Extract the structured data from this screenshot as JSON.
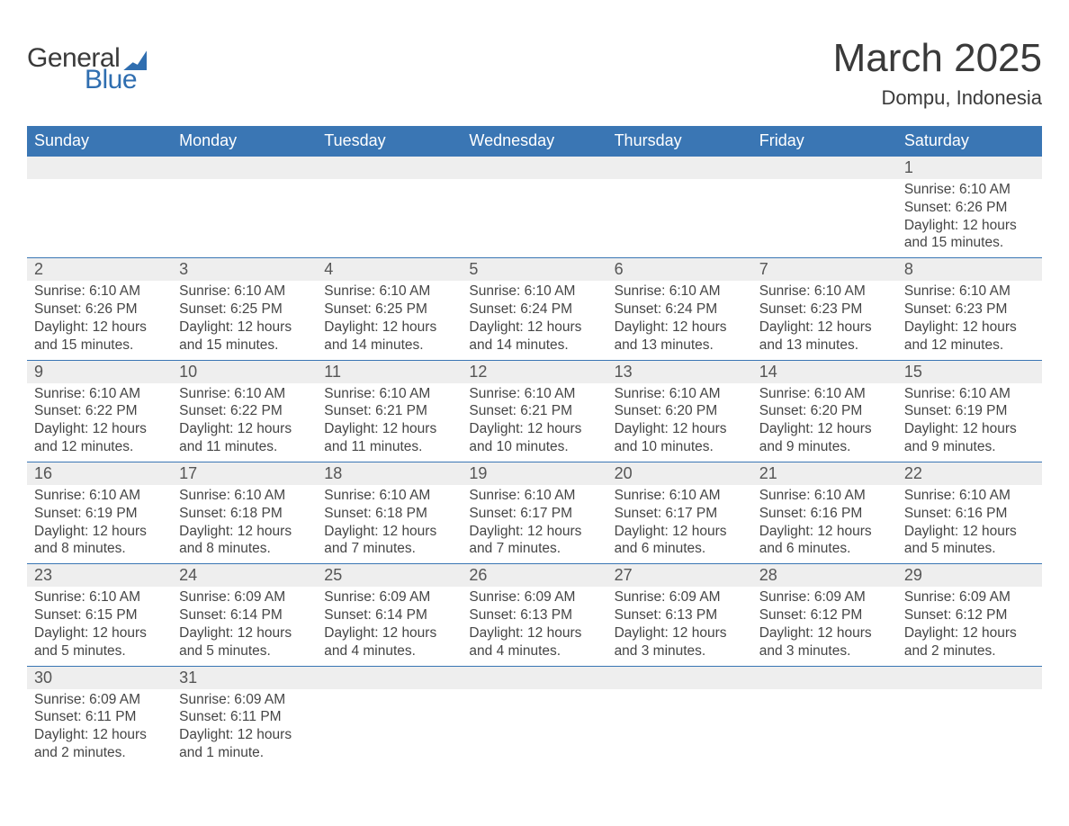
{
  "brand": {
    "word1": "General",
    "word2": "Blue"
  },
  "title": "March 2025",
  "location": "Dompu, Indonesia",
  "colors": {
    "header_bg": "#3a76b4",
    "header_text": "#ffffff",
    "daynum_bg": "#eeeeee",
    "border": "#3a76b4",
    "text": "#3a3a3a",
    "brand_blue": "#2f6eb0"
  },
  "days_of_week": [
    "Sunday",
    "Monday",
    "Tuesday",
    "Wednesday",
    "Thursday",
    "Friday",
    "Saturday"
  ],
  "weeks": [
    [
      {
        "n": "",
        "sunrise": "",
        "sunset": "",
        "daylight": ""
      },
      {
        "n": "",
        "sunrise": "",
        "sunset": "",
        "daylight": ""
      },
      {
        "n": "",
        "sunrise": "",
        "sunset": "",
        "daylight": ""
      },
      {
        "n": "",
        "sunrise": "",
        "sunset": "",
        "daylight": ""
      },
      {
        "n": "",
        "sunrise": "",
        "sunset": "",
        "daylight": ""
      },
      {
        "n": "",
        "sunrise": "",
        "sunset": "",
        "daylight": ""
      },
      {
        "n": "1",
        "sunrise": "Sunrise: 6:10 AM",
        "sunset": "Sunset: 6:26 PM",
        "daylight": "Daylight: 12 hours and 15 minutes."
      }
    ],
    [
      {
        "n": "2",
        "sunrise": "Sunrise: 6:10 AM",
        "sunset": "Sunset: 6:26 PM",
        "daylight": "Daylight: 12 hours and 15 minutes."
      },
      {
        "n": "3",
        "sunrise": "Sunrise: 6:10 AM",
        "sunset": "Sunset: 6:25 PM",
        "daylight": "Daylight: 12 hours and 15 minutes."
      },
      {
        "n": "4",
        "sunrise": "Sunrise: 6:10 AM",
        "sunset": "Sunset: 6:25 PM",
        "daylight": "Daylight: 12 hours and 14 minutes."
      },
      {
        "n": "5",
        "sunrise": "Sunrise: 6:10 AM",
        "sunset": "Sunset: 6:24 PM",
        "daylight": "Daylight: 12 hours and 14 minutes."
      },
      {
        "n": "6",
        "sunrise": "Sunrise: 6:10 AM",
        "sunset": "Sunset: 6:24 PM",
        "daylight": "Daylight: 12 hours and 13 minutes."
      },
      {
        "n": "7",
        "sunrise": "Sunrise: 6:10 AM",
        "sunset": "Sunset: 6:23 PM",
        "daylight": "Daylight: 12 hours and 13 minutes."
      },
      {
        "n": "8",
        "sunrise": "Sunrise: 6:10 AM",
        "sunset": "Sunset: 6:23 PM",
        "daylight": "Daylight: 12 hours and 12 minutes."
      }
    ],
    [
      {
        "n": "9",
        "sunrise": "Sunrise: 6:10 AM",
        "sunset": "Sunset: 6:22 PM",
        "daylight": "Daylight: 12 hours and 12 minutes."
      },
      {
        "n": "10",
        "sunrise": "Sunrise: 6:10 AM",
        "sunset": "Sunset: 6:22 PM",
        "daylight": "Daylight: 12 hours and 11 minutes."
      },
      {
        "n": "11",
        "sunrise": "Sunrise: 6:10 AM",
        "sunset": "Sunset: 6:21 PM",
        "daylight": "Daylight: 12 hours and 11 minutes."
      },
      {
        "n": "12",
        "sunrise": "Sunrise: 6:10 AM",
        "sunset": "Sunset: 6:21 PM",
        "daylight": "Daylight: 12 hours and 10 minutes."
      },
      {
        "n": "13",
        "sunrise": "Sunrise: 6:10 AM",
        "sunset": "Sunset: 6:20 PM",
        "daylight": "Daylight: 12 hours and 10 minutes."
      },
      {
        "n": "14",
        "sunrise": "Sunrise: 6:10 AM",
        "sunset": "Sunset: 6:20 PM",
        "daylight": "Daylight: 12 hours and 9 minutes."
      },
      {
        "n": "15",
        "sunrise": "Sunrise: 6:10 AM",
        "sunset": "Sunset: 6:19 PM",
        "daylight": "Daylight: 12 hours and 9 minutes."
      }
    ],
    [
      {
        "n": "16",
        "sunrise": "Sunrise: 6:10 AM",
        "sunset": "Sunset: 6:19 PM",
        "daylight": "Daylight: 12 hours and 8 minutes."
      },
      {
        "n": "17",
        "sunrise": "Sunrise: 6:10 AM",
        "sunset": "Sunset: 6:18 PM",
        "daylight": "Daylight: 12 hours and 8 minutes."
      },
      {
        "n": "18",
        "sunrise": "Sunrise: 6:10 AM",
        "sunset": "Sunset: 6:18 PM",
        "daylight": "Daylight: 12 hours and 7 minutes."
      },
      {
        "n": "19",
        "sunrise": "Sunrise: 6:10 AM",
        "sunset": "Sunset: 6:17 PM",
        "daylight": "Daylight: 12 hours and 7 minutes."
      },
      {
        "n": "20",
        "sunrise": "Sunrise: 6:10 AM",
        "sunset": "Sunset: 6:17 PM",
        "daylight": "Daylight: 12 hours and 6 minutes."
      },
      {
        "n": "21",
        "sunrise": "Sunrise: 6:10 AM",
        "sunset": "Sunset: 6:16 PM",
        "daylight": "Daylight: 12 hours and 6 minutes."
      },
      {
        "n": "22",
        "sunrise": "Sunrise: 6:10 AM",
        "sunset": "Sunset: 6:16 PM",
        "daylight": "Daylight: 12 hours and 5 minutes."
      }
    ],
    [
      {
        "n": "23",
        "sunrise": "Sunrise: 6:10 AM",
        "sunset": "Sunset: 6:15 PM",
        "daylight": "Daylight: 12 hours and 5 minutes."
      },
      {
        "n": "24",
        "sunrise": "Sunrise: 6:09 AM",
        "sunset": "Sunset: 6:14 PM",
        "daylight": "Daylight: 12 hours and 5 minutes."
      },
      {
        "n": "25",
        "sunrise": "Sunrise: 6:09 AM",
        "sunset": "Sunset: 6:14 PM",
        "daylight": "Daylight: 12 hours and 4 minutes."
      },
      {
        "n": "26",
        "sunrise": "Sunrise: 6:09 AM",
        "sunset": "Sunset: 6:13 PM",
        "daylight": "Daylight: 12 hours and 4 minutes."
      },
      {
        "n": "27",
        "sunrise": "Sunrise: 6:09 AM",
        "sunset": "Sunset: 6:13 PM",
        "daylight": "Daylight: 12 hours and 3 minutes."
      },
      {
        "n": "28",
        "sunrise": "Sunrise: 6:09 AM",
        "sunset": "Sunset: 6:12 PM",
        "daylight": "Daylight: 12 hours and 3 minutes."
      },
      {
        "n": "29",
        "sunrise": "Sunrise: 6:09 AM",
        "sunset": "Sunset: 6:12 PM",
        "daylight": "Daylight: 12 hours and 2 minutes."
      }
    ],
    [
      {
        "n": "30",
        "sunrise": "Sunrise: 6:09 AM",
        "sunset": "Sunset: 6:11 PM",
        "daylight": "Daylight: 12 hours and 2 minutes."
      },
      {
        "n": "31",
        "sunrise": "Sunrise: 6:09 AM",
        "sunset": "Sunset: 6:11 PM",
        "daylight": "Daylight: 12 hours and 1 minute."
      },
      {
        "n": "",
        "sunrise": "",
        "sunset": "",
        "daylight": ""
      },
      {
        "n": "",
        "sunrise": "",
        "sunset": "",
        "daylight": ""
      },
      {
        "n": "",
        "sunrise": "",
        "sunset": "",
        "daylight": ""
      },
      {
        "n": "",
        "sunrise": "",
        "sunset": "",
        "daylight": ""
      },
      {
        "n": "",
        "sunrise": "",
        "sunset": "",
        "daylight": ""
      }
    ]
  ]
}
